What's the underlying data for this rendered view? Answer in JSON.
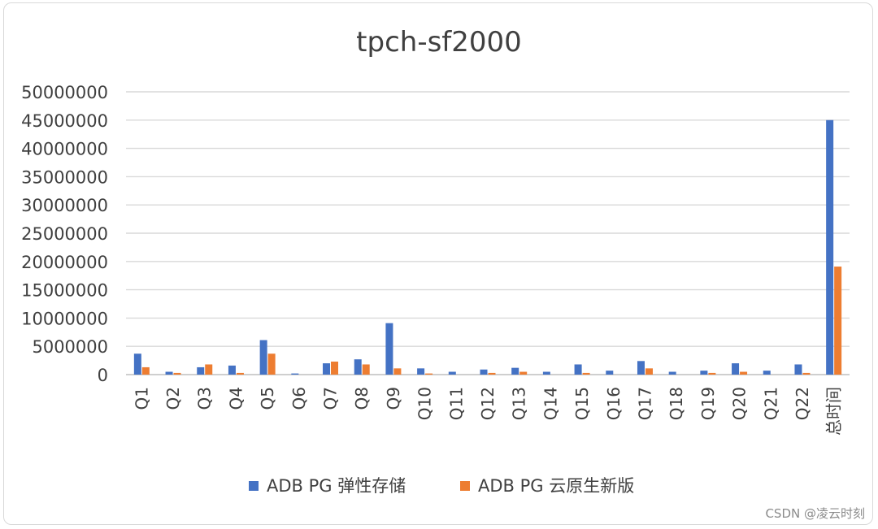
{
  "chart_data": {
    "type": "bar",
    "title": "tpch-sf2000",
    "xlabel": "",
    "ylabel": "",
    "ylim": [
      0,
      50000000
    ],
    "yticks": [
      0,
      5000000,
      10000000,
      15000000,
      20000000,
      25000000,
      30000000,
      35000000,
      40000000,
      45000000,
      50000000
    ],
    "ytick_labels": [
      "0",
      "5000000",
      "10000000",
      "15000000",
      "20000000",
      "25000000",
      "30000000",
      "35000000",
      "40000000",
      "45000000",
      "50000000"
    ],
    "grid": true,
    "legend_position": "bottom",
    "categories": [
      "Q1",
      "Q2",
      "Q3",
      "Q4",
      "Q5",
      "Q6",
      "Q7",
      "Q8",
      "Q9",
      "Q10",
      "Q11",
      "Q12",
      "Q13",
      "Q14",
      "Q15",
      "Q16",
      "Q17",
      "Q18",
      "Q19",
      "Q20",
      "Q21",
      "Q22",
      "总时间"
    ],
    "series": [
      {
        "name": "ADB PG 弹性存储",
        "color": "#4472c4",
        "values": [
          3700000,
          500000,
          1300000,
          1600000,
          6100000,
          200000,
          2000000,
          2700000,
          9100000,
          1100000,
          500000,
          900000,
          1200000,
          500000,
          1800000,
          700000,
          2400000,
          500000,
          700000,
          2000000,
          700000,
          1800000,
          45000000
        ]
      },
      {
        "name": "ADB PG 云原生新版",
        "color": "#ed7d31",
        "values": [
          1300000,
          300000,
          1800000,
          300000,
          3700000,
          0,
          2300000,
          1800000,
          1100000,
          200000,
          0,
          300000,
          500000,
          0,
          300000,
          0,
          1100000,
          0,
          300000,
          500000,
          0,
          300000,
          19100000
        ]
      }
    ]
  },
  "watermark": "CSDN @凌云时刻"
}
